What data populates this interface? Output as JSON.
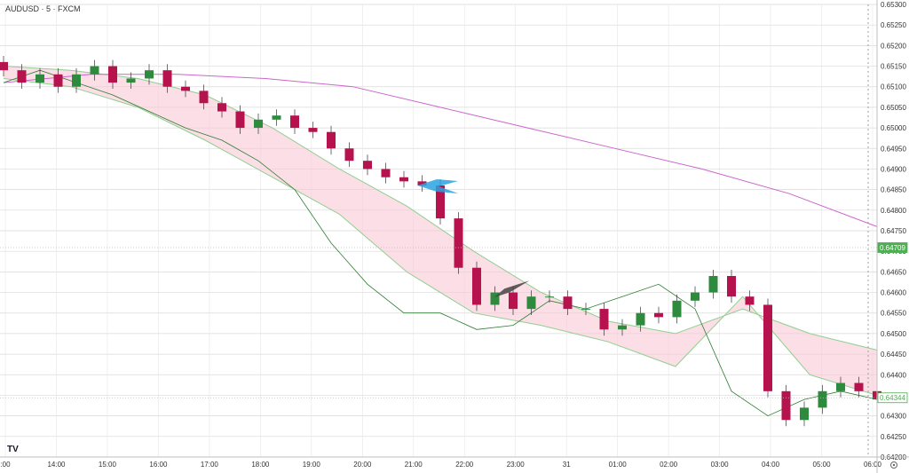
{
  "header": {
    "title": "AUDUSD · 5 · FXCM"
  },
  "logo_text": "TV",
  "chart_data": {
    "type": "candlestick",
    "symbol": "AUDUSD",
    "timeframe": "5",
    "source": "FXCM",
    "ylim": [
      0.642,
      0.653
    ],
    "y_ticks": [
      "0.65300",
      "0.65250",
      "0.65200",
      "0.65150",
      "0.65100",
      "0.65050",
      "0.65000",
      "0.64950",
      "0.64900",
      "0.64850",
      "0.64800",
      "0.64750",
      "0.64700",
      "0.64650",
      "0.64600",
      "0.64550",
      "0.64500",
      "0.64450",
      "0.64400",
      "0.64350",
      "0.64300",
      "0.64250",
      "0.64200"
    ],
    "x_ticks": [
      ":00",
      "14:00",
      "15:00",
      "16:00",
      "17:00",
      "18:00",
      "19:00",
      "20:00",
      "21:00",
      "22:00",
      "23:00",
      "31",
      "01:00",
      "02:00",
      "03:00",
      "04:00",
      "05:00",
      "06:00"
    ],
    "price_badges": [
      {
        "value": "0.64709",
        "color": "#4caf50",
        "style": "filled"
      },
      {
        "value": "0.64344",
        "color": "#4caf50",
        "style": "outline"
      }
    ],
    "band_upper": [
      0.6515,
      0.6514,
      0.6512,
      0.6508,
      0.65,
      0.649,
      0.6481,
      0.647,
      0.646,
      0.6453,
      0.645,
      0.6456,
      0.645,
      0.6446
    ],
    "band_lower": [
      0.6512,
      0.651,
      0.6505,
      0.6497,
      0.6488,
      0.6479,
      0.6465,
      0.6455,
      0.6452,
      0.6448,
      0.6442,
      0.6459,
      0.644,
      0.6435
    ],
    "ma_long": [
      0.6511,
      0.6513,
      0.6513,
      0.6512,
      0.651,
      0.6505,
      0.65,
      0.6495,
      0.649,
      0.6484,
      0.6476
    ],
    "ma_short": [
      0.6511,
      0.6514,
      0.6511,
      0.6508,
      0.6504,
      0.65,
      0.6497,
      0.6492,
      0.6485,
      0.6472,
      0.6462,
      0.6455,
      0.6455,
      0.6451,
      0.6452,
      0.6458,
      0.6456,
      0.6459,
      0.6462,
      0.6456,
      0.6436,
      0.643,
      0.6434,
      0.6436,
      0.6434
    ],
    "candle_close": [
      0.6514,
      0.6511,
      0.6513,
      0.651,
      0.6513,
      0.6515,
      0.6511,
      0.6512,
      0.6514,
      0.651,
      0.6509,
      0.6506,
      0.6504,
      0.65,
      0.6502,
      0.6503,
      0.65,
      0.6499,
      0.6495,
      0.6492,
      0.649,
      0.6488,
      0.6487,
      0.6486,
      0.6478,
      0.6466,
      0.6457,
      0.646,
      0.6456,
      0.6459,
      0.6459,
      0.6456,
      0.6456,
      0.6451,
      0.6452,
      0.6455,
      0.6454,
      0.6458,
      0.646,
      0.6464,
      0.6459,
      0.6457,
      0.6436,
      0.6429,
      0.6432,
      0.6436,
      0.6438,
      0.6436,
      0.6434
    ],
    "annotations": [
      {
        "type": "arrow",
        "color": "#29a3e0",
        "at_time": "21:15",
        "at_price": 0.6486
      },
      {
        "type": "arrow",
        "color": "#444444",
        "at_time": "22:45",
        "at_price": 0.64605
      }
    ],
    "grid": true,
    "legend": "none"
  }
}
